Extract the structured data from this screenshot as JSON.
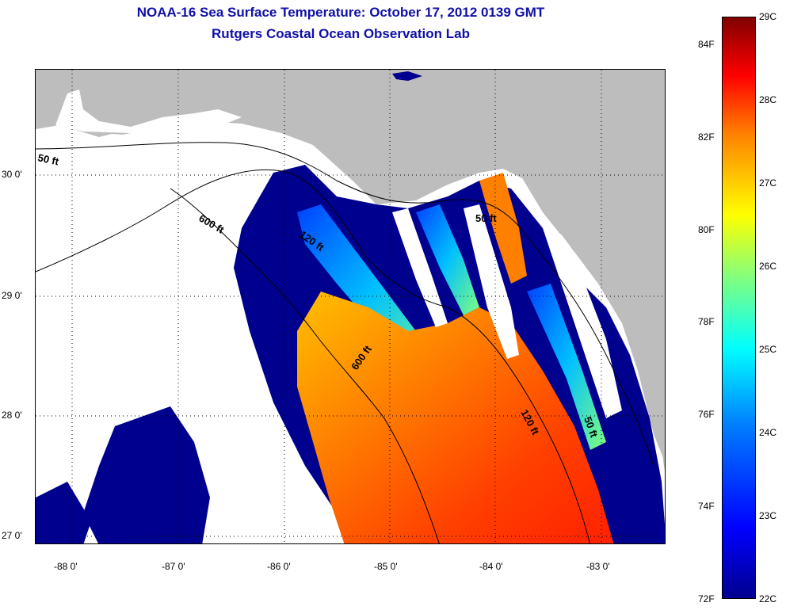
{
  "title": {
    "line1": "NOAA-16 Sea Surface Temperature:  October 17, 2012 0139 GMT",
    "line2": "Rutgers Coastal Ocean Observation Lab"
  },
  "map": {
    "lon_ticks": [
      "-88 0'",
      "-87 0'",
      "-86 0'",
      "-85 0'",
      "-84 0'",
      "-83 0'"
    ],
    "lat_ticks": [
      "30 0'",
      "29 0'",
      "28 0'",
      "27 0'"
    ],
    "contour_labels": [
      "50 ft",
      "600 ft",
      "120 ft",
      "600 ft",
      "50 ft",
      "120 ft",
      "50 ft"
    ],
    "colors": {
      "land": "#bdbdbd",
      "cloud": "#ffffff",
      "cold": "#00008f",
      "warm": "#ff4000"
    }
  },
  "colorbar": {
    "celsius_labels": [
      "29C",
      "28C",
      "27C",
      "26C",
      "25C",
      "24C",
      "23C",
      "22C"
    ],
    "fahrenheit_labels": [
      "84F",
      "82F",
      "80F",
      "78F",
      "76F",
      "74F",
      "72F"
    ]
  }
}
